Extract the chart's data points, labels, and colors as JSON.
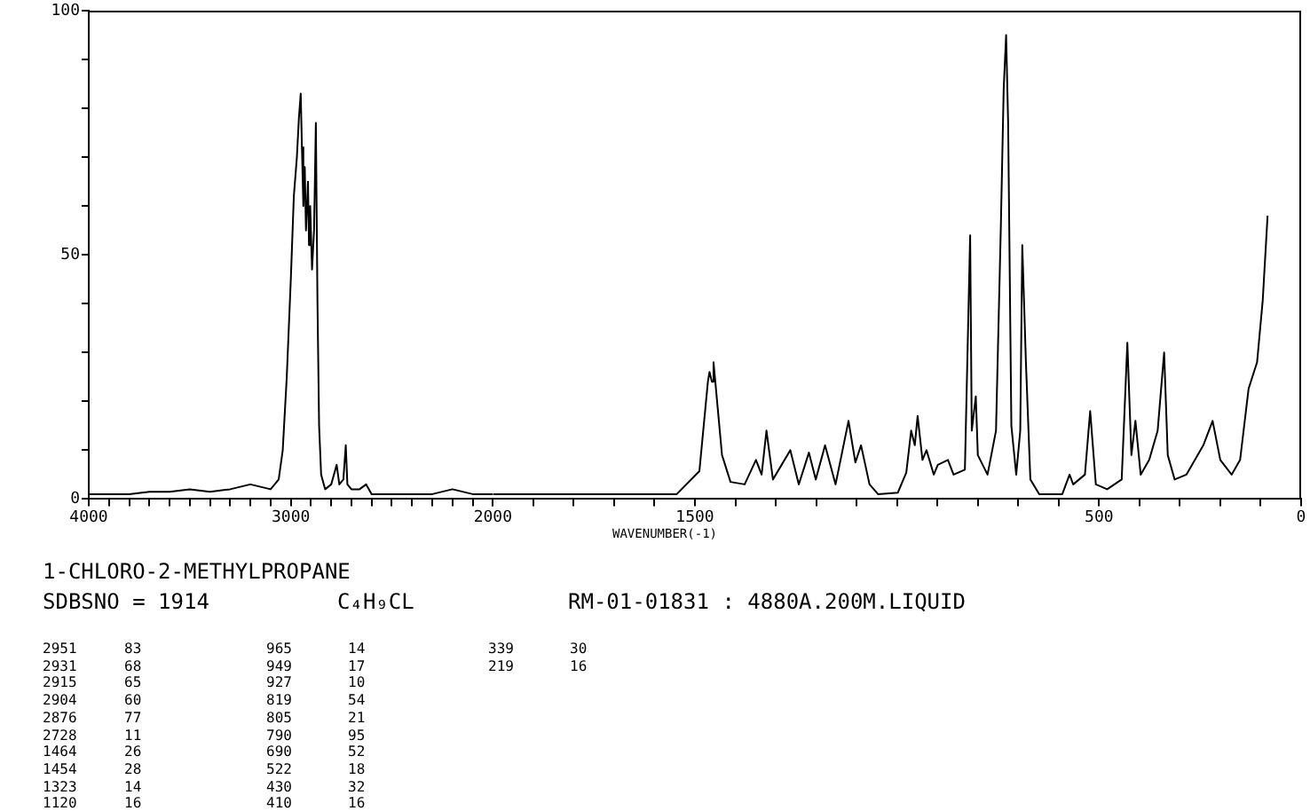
{
  "chart_data": [
    {
      "type": "line",
      "title": "1-CHLORO-2-METHYLPROPANE",
      "subtitle": "SDBSNO = 1914",
      "color": "#000000",
      "x": [
        4000,
        3900,
        3800,
        3700,
        3600,
        3500,
        3400,
        3300,
        3200,
        3150,
        3100,
        3060,
        3040,
        3020,
        3000,
        2985,
        2970,
        2960,
        2951,
        2945,
        2938,
        2931,
        2925,
        2915,
        2910,
        2904,
        2895,
        2885,
        2876,
        2868,
        2860,
        2850,
        2830,
        2800,
        2773,
        2760,
        2740,
        2728,
        2720,
        2700,
        2660,
        2627,
        2600,
        2500,
        2400,
        2300,
        2200,
        2100,
        2000
      ],
      "values": [
        1,
        1,
        1,
        1.5,
        1.5,
        2,
        1.5,
        2,
        3,
        2.5,
        2,
        4,
        10,
        25,
        45,
        62,
        70,
        78,
        83,
        72,
        60,
        68,
        55,
        65,
        52,
        60,
        47,
        55,
        77,
        40,
        15,
        5,
        2,
        3,
        7,
        3,
        4,
        11,
        3,
        2,
        2,
        3,
        1,
        1,
        1,
        1,
        2,
        1,
        1
      ],
      "xlim": [
        4000,
        2000
      ],
      "xticks": [
        4000,
        {
          "value": 3900,
          "label": null
        },
        {
          "value": 3800,
          "label": null
        },
        {
          "value": 3700,
          "label": null
        },
        {
          "value": 3600,
          "label": null
        },
        {
          "value": 3500,
          "label": null
        },
        {
          "value": 3400,
          "label": null
        },
        {
          "value": 3300,
          "label": null
        },
        {
          "value": 3200,
          "label": null
        },
        {
          "value": 3100,
          "label": null
        },
        3000,
        {
          "value": 2900,
          "label": null
        },
        {
          "value": 2800,
          "label": null
        },
        {
          "value": 2700,
          "label": null
        },
        {
          "value": 2600,
          "label": null
        },
        {
          "value": 2500,
          "label": null
        },
        {
          "value": 2400,
          "label": null
        },
        {
          "value": 2300,
          "label": null
        },
        {
          "value": 2200,
          "label": null
        },
        {
          "value": 2100,
          "label": null
        },
        2000
      ],
      "ylim": [
        0,
        100
      ],
      "yticks": [
        0,
        {
          "value": 10,
          "label": null
        },
        {
          "value": 20,
          "label": null
        },
        {
          "value": 30,
          "label": null
        },
        {
          "value": 40,
          "label": null
        },
        50,
        {
          "value": 60,
          "label": null
        },
        {
          "value": 70,
          "label": null
        },
        {
          "value": 80,
          "label": null
        },
        {
          "value": 90,
          "label": null
        },
        100
      ],
      "annotations": [
        "C₄H₉CL",
        "RM-01-01831 : 4880A.200M.LIQUID",
        "2951 83",
        "2931 68",
        "2915 65",
        "2904 60",
        "2876 77",
        "2728 11",
        "1464 26",
        "1454 28",
        "1323 14",
        "1120 16",
        "965 14",
        "949 17",
        "927 10",
        "819 54",
        "805 21",
        "790 95",
        "690 52",
        "522 18",
        "430 32",
        "410 16",
        "339 30",
        "219 16"
      ]
    },
    {
      "type": "line",
      "xlabel": "WAVENUMBER(-1)",
      "color": "#000000",
      "tick_labels": "x",
      "x": [
        2000,
        1545,
        1489,
        1468,
        1464,
        1458,
        1454,
        1433,
        1412,
        1377,
        1349,
        1335,
        1323,
        1307,
        1264,
        1243,
        1218,
        1201,
        1178,
        1152,
        1120,
        1103,
        1089,
        1068,
        1047,
        998,
        977,
        965,
        956,
        949,
        937,
        927,
        909,
        899,
        874,
        860,
        832,
        819,
        815,
        805,
        800,
        776,
        755,
        743,
        736,
        730,
        725,
        717,
        705,
        695,
        690,
        681,
        670,
        648,
        591,
        573,
        564,
        535,
        522,
        508,
        480,
        444,
        430,
        420,
        410,
        397,
        376,
        355,
        339,
        330,
        313,
        284,
        242,
        219,
        200,
        172,
        151,
        130,
        109,
        95,
        83
      ],
      "values": [
        1,
        1,
        5.7,
        24,
        26,
        24,
        28,
        9,
        3.5,
        3,
        8,
        5,
        14,
        4,
        10,
        3,
        9.5,
        4,
        11,
        3,
        16,
        7.5,
        11,
        3,
        1,
        1.3,
        5.4,
        14,
        11,
        17,
        8,
        10,
        5,
        7,
        8,
        5,
        6,
        54,
        14,
        21,
        9,
        5,
        14,
        56,
        84,
        95,
        77,
        15,
        5,
        14,
        52,
        28,
        4,
        1,
        1,
        5,
        3,
        5,
        18,
        3,
        2,
        4,
        32,
        9,
        16,
        5,
        8,
        14,
        30,
        9,
        4,
        5,
        11,
        16,
        8,
        5,
        8,
        22.6,
        28,
        40.7,
        58
      ],
      "xlim": [
        2000,
        0
      ],
      "xticks": [
        {
          "value": 2000,
          "label": null
        },
        {
          "value": 1900,
          "label": null
        },
        {
          "value": 1800,
          "label": null
        },
        {
          "value": 1700,
          "label": null
        },
        {
          "value": 1600,
          "label": null
        },
        1500,
        {
          "value": 1400,
          "label": null
        },
        {
          "value": 1300,
          "label": null
        },
        {
          "value": 1200,
          "label": null
        },
        {
          "value": 1100,
          "label": null
        },
        {
          "value": 1000,
          "label": null
        },
        {
          "value": 900,
          "label": null
        },
        {
          "value": 800,
          "label": null
        },
        {
          "value": 700,
          "label": null
        },
        {
          "value": 600,
          "label": null
        },
        500,
        {
          "value": 400,
          "label": null
        },
        {
          "value": 300,
          "label": null
        },
        {
          "value": 200,
          "label": null
        },
        {
          "value": 100,
          "label": null
        },
        0
      ],
      "ylim": [
        0,
        100
      ]
    }
  ]
}
